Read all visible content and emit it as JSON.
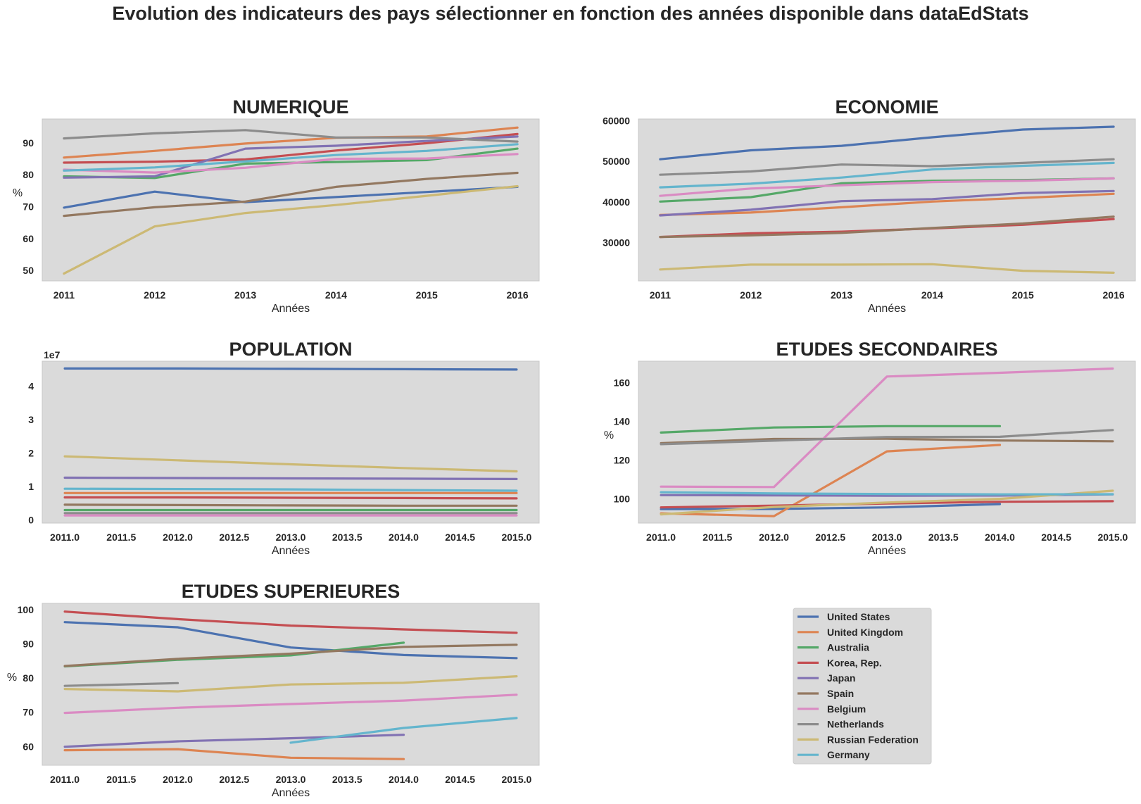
{
  "suptitle": "Evolution des indicateurs des pays sélectionner en fonction des années disponible dans dataEdStats",
  "colors": {
    "United States": "#4c72b0",
    "United Kingdom": "#dd8452",
    "Australia": "#55a868",
    "Korea, Rep.": "#c44e52",
    "Japan": "#8172b3",
    "Spain": "#937860",
    "Belgium": "#da8bc3",
    "Netherlands": "#8c8c8c",
    "Russian Federation": "#ccb974",
    "Germany": "#64b5cd",
    "axes_background": "#dadada"
  },
  "legend": {
    "placement": "bottom-right panel",
    "entries": [
      "United States",
      "United Kingdom",
      "Australia",
      "Korea, Rep.",
      "Japan",
      "Spain",
      "Belgium",
      "Netherlands",
      "Russian Federation",
      "Germany"
    ]
  },
  "chart_data": [
    {
      "id": "numerique",
      "type": "line",
      "title": "NUMERIQUE",
      "xlabel": "Années",
      "ylabel": "%",
      "grid": false,
      "xlim": [
        2010.76,
        2016.24
      ],
      "ylim": [
        46.7,
        97.5
      ],
      "xticks": [
        2011,
        2012,
        2013,
        2014,
        2015,
        2016
      ],
      "xtick_labels": [
        "2011",
        "2012",
        "2013",
        "2014",
        "2015",
        "2016"
      ],
      "yticks": [
        50,
        60,
        70,
        80,
        90
      ],
      "ytick_labels": [
        "50",
        "60",
        "70",
        "80",
        "90"
      ],
      "x": [
        2011,
        2012,
        2013,
        2014,
        2015,
        2016
      ],
      "series": [
        {
          "name": "United States",
          "values": [
            69.7,
            74.7,
            71.4,
            73.0,
            74.6,
            76.2
          ]
        },
        {
          "name": "United Kingdom",
          "values": [
            85.4,
            87.5,
            89.8,
            91.6,
            92.0,
            94.8
          ]
        },
        {
          "name": "Australia",
          "values": [
            79.5,
            79.0,
            83.5,
            84.0,
            84.6,
            88.2
          ]
        },
        {
          "name": "Korea, Rep.",
          "values": [
            83.8,
            84.1,
            84.8,
            87.6,
            89.9,
            92.8
          ]
        },
        {
          "name": "Japan",
          "values": [
            79.1,
            79.5,
            88.2,
            89.1,
            90.6,
            92.0
          ]
        },
        {
          "name": "Spain",
          "values": [
            67.1,
            69.8,
            71.6,
            76.2,
            78.7,
            80.6
          ]
        },
        {
          "name": "Belgium",
          "values": [
            81.6,
            80.7,
            82.2,
            85.0,
            85.1,
            86.5
          ]
        },
        {
          "name": "Netherlands",
          "values": [
            91.4,
            93.0,
            94.0,
            91.7,
            91.7,
            90.4
          ]
        },
        {
          "name": "Russian Federation",
          "values": [
            49.0,
            63.8,
            68.0,
            70.5,
            73.4,
            76.4
          ]
        },
        {
          "name": "Germany",
          "values": [
            81.3,
            82.3,
            84.2,
            86.2,
            87.5,
            89.6
          ]
        }
      ]
    },
    {
      "id": "economie",
      "type": "line",
      "title": "ECONOMIE",
      "xlabel": "Années",
      "ylabel": "",
      "grid": false,
      "xlim": [
        2010.76,
        2016.24
      ],
      "ylim": [
        20600,
        60400
      ],
      "xticks": [
        2011,
        2012,
        2013,
        2014,
        2015,
        2016
      ],
      "xtick_labels": [
        "2011",
        "2012",
        "2013",
        "2014",
        "2015",
        "2016"
      ],
      "yticks": [
        30000,
        40000,
        50000,
        60000
      ],
      "ytick_labels": [
        "30000",
        "40000",
        "50000",
        "60000"
      ],
      "x": [
        2011,
        2012,
        2013,
        2014,
        2015,
        2016
      ],
      "series": [
        {
          "name": "United States",
          "values": [
            50500,
            52700,
            53800,
            55900,
            57800,
            58500
          ]
        },
        {
          "name": "United Kingdom",
          "values": [
            36800,
            37400,
            38700,
            40100,
            41000,
            42000
          ]
        },
        {
          "name": "Australia",
          "values": [
            40100,
            41200,
            44600,
            45200,
            45400,
            45800
          ]
        },
        {
          "name": "Korea, Rep.",
          "values": [
            31400,
            32300,
            32700,
            33500,
            34400,
            35800
          ]
        },
        {
          "name": "Japan",
          "values": [
            36700,
            38100,
            40200,
            40700,
            42200,
            42700
          ]
        },
        {
          "name": "Spain",
          "values": [
            31400,
            31800,
            32400,
            33600,
            34700,
            36400
          ]
        },
        {
          "name": "Belgium",
          "values": [
            41500,
            43300,
            44100,
            44900,
            45200,
            45800
          ]
        },
        {
          "name": "Netherlands",
          "values": [
            46700,
            47500,
            49200,
            48800,
            49600,
            50500
          ]
        },
        {
          "name": "Russian Federation",
          "values": [
            23400,
            24600,
            24600,
            24700,
            23100,
            22600
          ]
        },
        {
          "name": "Germany",
          "values": [
            43600,
            44500,
            46000,
            48000,
            48900,
            49600
          ]
        }
      ]
    },
    {
      "id": "population",
      "type": "line",
      "title": "POPULATION",
      "xlabel": "Années",
      "ylabel": "",
      "offset_label": "1e7",
      "grid": false,
      "xlim": [
        2010.8,
        2015.2
      ],
      "ylim": [
        -0.1,
        4.75
      ],
      "xticks": [
        2011,
        2011.5,
        2012,
        2012.5,
        2013,
        2013.5,
        2014,
        2014.5,
        2015
      ],
      "xtick_labels": [
        "2011.0",
        "2011.5",
        "2012.0",
        "2012.5",
        "2013.0",
        "2013.5",
        "2014.0",
        "2014.5",
        "2015.0"
      ],
      "yticks": [
        0,
        1,
        2,
        3,
        4
      ],
      "ytick_labels": [
        "0",
        "1",
        "2",
        "3",
        "4"
      ],
      "x": [
        2011,
        2012,
        2013,
        2014,
        2015
      ],
      "series": [
        {
          "name": "United States",
          "values": [
            4.53,
            4.53,
            4.52,
            4.51,
            4.5
          ]
        },
        {
          "name": "United Kingdom",
          "values": [
            0.8,
            0.8,
            0.8,
            0.8,
            0.8
          ]
        },
        {
          "name": "Australia",
          "values": [
            0.29,
            0.29,
            0.29,
            0.29,
            0.29
          ]
        },
        {
          "name": "Korea, Rep.",
          "values": [
            0.67,
            0.67,
            0.66,
            0.65,
            0.64
          ]
        },
        {
          "name": "Japan",
          "values": [
            1.26,
            1.25,
            1.24,
            1.23,
            1.22
          ]
        },
        {
          "name": "Spain",
          "values": [
            0.45,
            0.44,
            0.43,
            0.42,
            0.42
          ]
        },
        {
          "name": "Belgium",
          "values": [
            0.13,
            0.13,
            0.13,
            0.13,
            0.13
          ]
        },
        {
          "name": "Netherlands",
          "values": [
            0.2,
            0.2,
            0.2,
            0.2,
            0.2
          ]
        },
        {
          "name": "Russian Federation",
          "values": [
            1.9,
            1.78,
            1.66,
            1.55,
            1.45
          ]
        },
        {
          "name": "Germany",
          "values": [
            0.93,
            0.92,
            0.91,
            0.89,
            0.87
          ]
        }
      ]
    },
    {
      "id": "etudes_secondaires",
      "type": "line",
      "title": "ETUDES SECONDAIRES",
      "xlabel": "Années",
      "ylabel": "%",
      "grid": false,
      "xlim": [
        2010.8,
        2015.2
      ],
      "ylim": [
        87.5,
        171.0
      ],
      "xticks": [
        2011,
        2011.5,
        2012,
        2012.5,
        2013,
        2013.5,
        2014,
        2014.5,
        2015
      ],
      "xtick_labels": [
        "2011.0",
        "2011.5",
        "2012.0",
        "2012.5",
        "2013.0",
        "2013.5",
        "2014.0",
        "2014.5",
        "2015.0"
      ],
      "yticks": [
        100,
        120,
        140,
        160
      ],
      "ytick_labels": [
        "100",
        "120",
        "140",
        "160"
      ],
      "series": [
        {
          "name": "United States",
          "x": [
            2011,
            2012,
            2013,
            2014
          ],
          "values": [
            94.7,
            94.8,
            95.6,
            97.3
          ]
        },
        {
          "name": "United Kingdom",
          "x": [
            2011,
            2012,
            2013,
            2014
          ],
          "values": [
            92.5,
            91.1,
            124.5,
            127.8
          ]
        },
        {
          "name": "Australia",
          "x": [
            2011,
            2012,
            2013,
            2014
          ],
          "values": [
            134.2,
            136.8,
            137.5,
            137.5
          ]
        },
        {
          "name": "Korea, Rep.",
          "x": [
            2011,
            2012,
            2013,
            2014,
            2015
          ],
          "values": [
            95.6,
            96.5,
            97.6,
            98.5,
            98.8
          ]
        },
        {
          "name": "Japan",
          "x": [
            2011,
            2012,
            2013,
            2014,
            2015
          ],
          "values": [
            101.9,
            101.8,
            101.6,
            101.7,
            102.3
          ]
        },
        {
          "name": "Spain",
          "x": [
            2011,
            2012,
            2013,
            2014,
            2015
          ],
          "values": [
            128.7,
            130.9,
            131.0,
            130.1,
            129.7
          ]
        },
        {
          "name": "Belgium",
          "x": [
            2011,
            2012,
            2013,
            2014,
            2015
          ],
          "values": [
            106.3,
            106.1,
            163.1,
            165.0,
            167.2
          ]
        },
        {
          "name": "Netherlands",
          "x": [
            2011,
            2012,
            2013,
            2014,
            2015
          ],
          "values": [
            128.2,
            130.0,
            131.9,
            132.0,
            135.5
          ]
        },
        {
          "name": "Russian Federation",
          "x": [
            2011,
            2012,
            2013,
            2014,
            2015
          ],
          "values": [
            92.0,
            95.8,
            98.1,
            100.0,
            104.2
          ]
        },
        {
          "name": "Germany",
          "x": [
            2011,
            2012,
            2013,
            2014,
            2015
          ],
          "values": [
            103.4,
            102.8,
            102.5,
            102.3,
            102.4
          ]
        }
      ]
    },
    {
      "id": "etudes_superieures",
      "type": "line",
      "title": "ETUDES SUPERIEURES",
      "xlabel": "Années",
      "ylabel": "%",
      "grid": false,
      "xlim": [
        2010.8,
        2015.2
      ],
      "ylim": [
        54.5,
        101.8
      ],
      "xticks": [
        2011,
        2011.5,
        2012,
        2012.5,
        2013,
        2013.5,
        2014,
        2014.5,
        2015
      ],
      "xtick_labels": [
        "2011.0",
        "2011.5",
        "2012.0",
        "2012.5",
        "2013.0",
        "2013.5",
        "2014.0",
        "2014.5",
        "2015.0"
      ],
      "yticks": [
        60,
        70,
        80,
        90,
        100
      ],
      "ytick_labels": [
        "60",
        "70",
        "80",
        "90",
        "100"
      ],
      "series": [
        {
          "name": "United States",
          "x": [
            2011,
            2012,
            2013,
            2014,
            2015
          ],
          "values": [
            96.3,
            94.8,
            88.9,
            86.7,
            85.8
          ]
        },
        {
          "name": "United Kingdom",
          "x": [
            2011,
            2012,
            2013,
            2014
          ],
          "values": [
            58.9,
            59.2,
            56.7,
            56.3
          ]
        },
        {
          "name": "Australia",
          "x": [
            2011,
            2012,
            2013,
            2014
          ],
          "values": [
            83.4,
            85.3,
            86.6,
            90.3
          ]
        },
        {
          "name": "Korea, Rep.",
          "x": [
            2011,
            2012,
            2013,
            2014,
            2015
          ],
          "values": [
            99.4,
            97.2,
            95.3,
            94.2,
            93.2
          ]
        },
        {
          "name": "Japan",
          "x": [
            2011,
            2012,
            2013,
            2014
          ],
          "values": [
            59.9,
            61.5,
            62.4,
            63.4
          ]
        },
        {
          "name": "Spain",
          "x": [
            2011,
            2012,
            2013,
            2014,
            2015
          ],
          "values": [
            83.5,
            85.6,
            87.1,
            89.1,
            89.7
          ]
        },
        {
          "name": "Belgium",
          "x": [
            2011,
            2012,
            2013,
            2014,
            2015
          ],
          "values": [
            69.8,
            71.3,
            72.4,
            73.4,
            75.1
          ]
        },
        {
          "name": "Netherlands",
          "x": [
            2011,
            2012
          ],
          "values": [
            77.7,
            78.5
          ]
        },
        {
          "name": "Russian Federation",
          "x": [
            2011,
            2012,
            2013,
            2014,
            2015
          ],
          "values": [
            76.8,
            76.1,
            78.1,
            78.6,
            80.5
          ]
        },
        {
          "name": "Germany",
          "x": [
            2013,
            2014,
            2015
          ],
          "values": [
            61.1,
            65.4,
            68.3
          ]
        }
      ]
    }
  ]
}
